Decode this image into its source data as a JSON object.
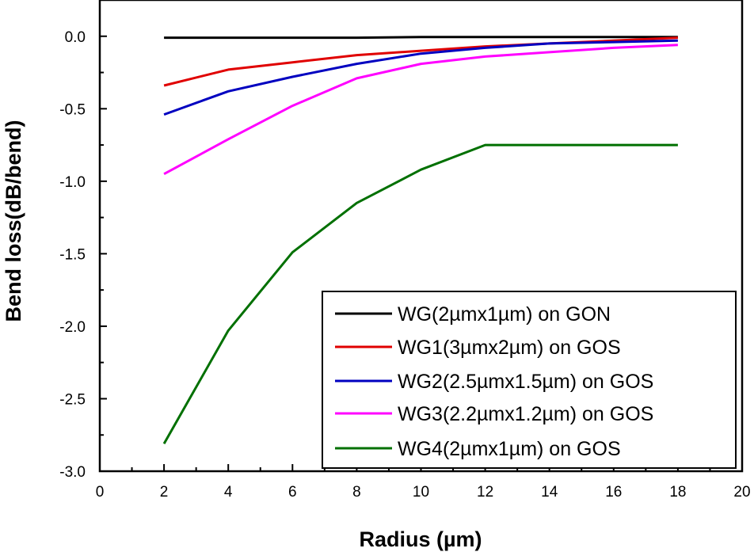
{
  "chart_data": {
    "type": "line",
    "title": "",
    "xlabel": "Radius (µm)",
    "ylabel": "Bend loss(dB/bend)",
    "xlim": [
      0,
      20
    ],
    "ylim": [
      -3.0,
      0.25
    ],
    "xticks": [
      0,
      2,
      4,
      6,
      8,
      10,
      12,
      14,
      16,
      18,
      20
    ],
    "xtick_labels": [
      "0",
      "2",
      "4",
      "6",
      "8",
      "10",
      "12",
      "14",
      "16",
      "18",
      "20"
    ],
    "yticks": [
      0,
      -0.5,
      -1.0,
      -1.5,
      -2.0,
      -2.5,
      -3.0
    ],
    "ytick_labels": [
      "0.0",
      "-0.5",
      "-1.0",
      "-1.5",
      "-2.0",
      "-2.5",
      "-3.0"
    ],
    "grid": false,
    "legend_position": "bottom-right",
    "x": [
      2,
      4,
      6,
      8,
      10,
      12,
      14,
      16,
      18
    ],
    "series": [
      {
        "name": "WG(2µmx1µm) on GON",
        "color": "#000000",
        "values": [
          -0.01,
          -0.01,
          -0.01,
          -0.01,
          -0.005,
          -0.005,
          -0.005,
          -0.005,
          -0.005
        ]
      },
      {
        "name": "WG1(3µmx2µm) on GOS",
        "color": "#e00000",
        "values": [
          -0.34,
          -0.23,
          -0.18,
          -0.13,
          -0.1,
          -0.07,
          -0.05,
          -0.03,
          -0.01
        ]
      },
      {
        "name": "WG2(2.5µmx1.5µm) on GOS",
        "color": "#0000c0",
        "values": [
          -0.54,
          -0.38,
          -0.28,
          -0.19,
          -0.12,
          -0.08,
          -0.05,
          -0.04,
          -0.03
        ]
      },
      {
        "name": "WG3(2.2µmx1.2µm) on GOS",
        "color": "#ff00ff",
        "values": [
          -0.95,
          -0.71,
          -0.48,
          -0.29,
          -0.19,
          -0.14,
          -0.11,
          -0.08,
          -0.06
        ]
      },
      {
        "name": "WG4(2µmx1µm) on GOS",
        "color": "#007000",
        "values": [
          -2.81,
          -2.03,
          -1.49,
          -1.15,
          -0.92,
          -0.75,
          -0.75,
          -0.75,
          -0.75
        ]
      }
    ]
  }
}
